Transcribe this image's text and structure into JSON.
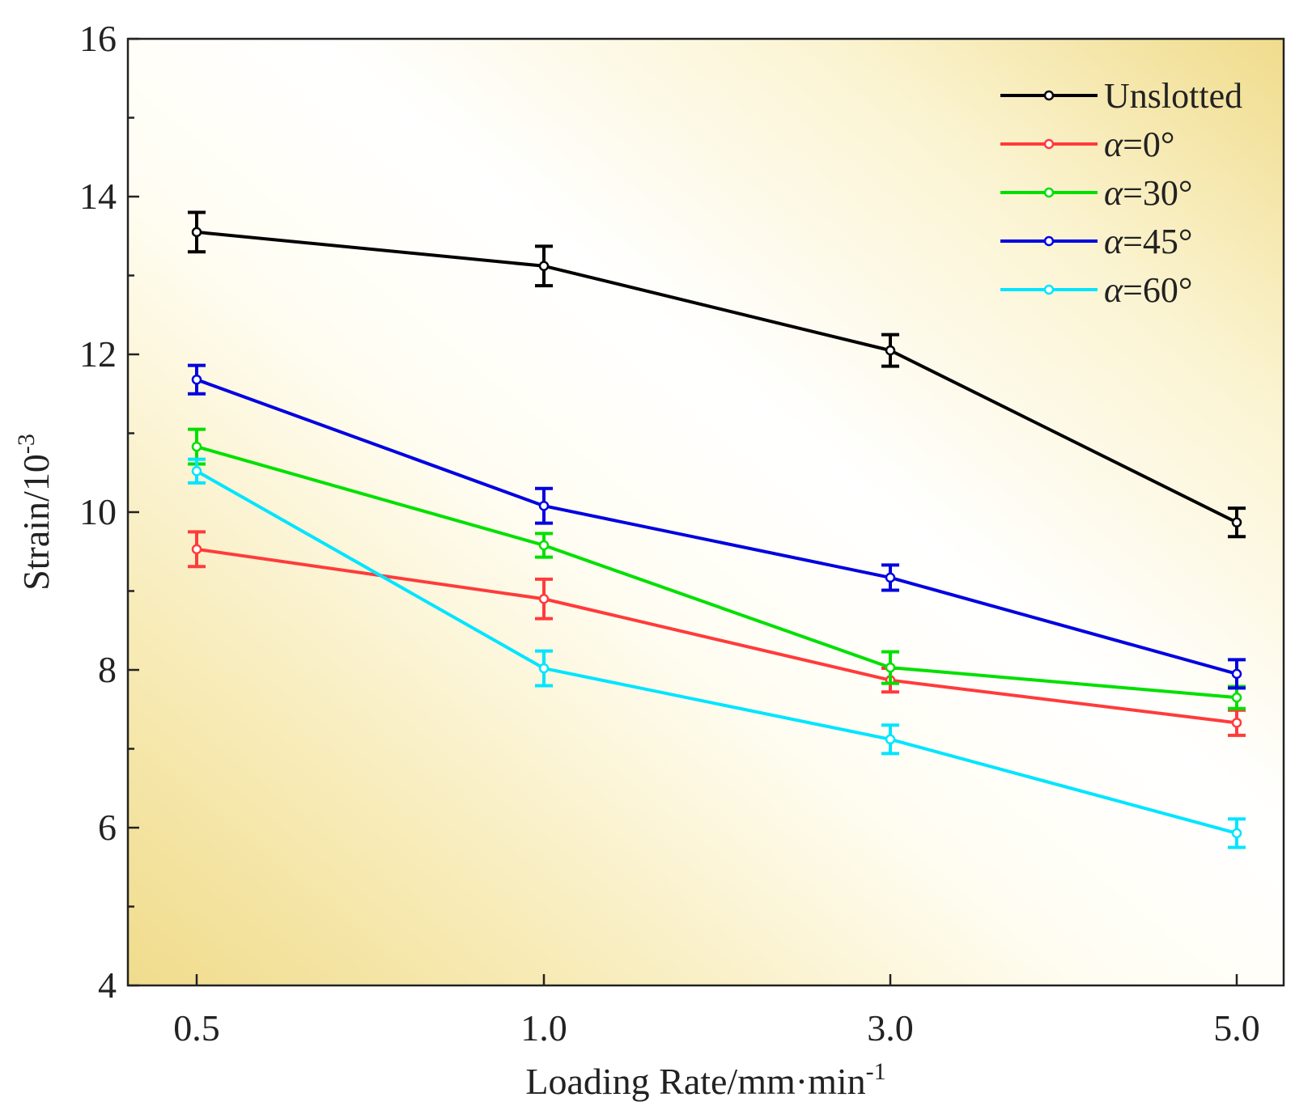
{
  "chart_data": {
    "type": "line",
    "categories": [
      "0.5",
      "1.0",
      "3.0",
      "5.0"
    ],
    "xlabel": "Loading Rate/mm·min",
    "xlabel_sup": "-1",
    "ylabel": "Strain/10",
    "ylabel_sup": "-3",
    "ylim": [
      4,
      16
    ],
    "yticks": [
      4,
      6,
      8,
      10,
      12,
      14,
      16
    ],
    "ytick_labels": [
      "4",
      "6",
      "8",
      "10",
      "12",
      "14",
      "16"
    ],
    "legend_position": "top-right",
    "series": [
      {
        "name": "Unslotted",
        "prefix": "",
        "label": "Unslotted",
        "color": "#000000",
        "values": [
          13.55,
          13.12,
          12.05,
          9.87
        ],
        "errors": [
          0.25,
          0.25,
          0.2,
          0.18
        ]
      },
      {
        "name": "α=0°",
        "prefix": "α",
        "label": "=0°",
        "color": "#ff3b3b",
        "values": [
          9.53,
          8.9,
          7.87,
          7.33
        ],
        "errors": [
          0.22,
          0.25,
          0.15,
          0.16
        ]
      },
      {
        "name": "α=30°",
        "prefix": "α",
        "label": "=30°",
        "color": "#00e000",
        "values": [
          10.83,
          9.58,
          8.03,
          7.65
        ],
        "errors": [
          0.22,
          0.15,
          0.2,
          0.14
        ]
      },
      {
        "name": "α=45°",
        "prefix": "α",
        "label": "=45°",
        "color": "#0000e0",
        "values": [
          11.68,
          10.08,
          9.17,
          7.95
        ],
        "errors": [
          0.18,
          0.22,
          0.16,
          0.18
        ]
      },
      {
        "name": "α=60°",
        "prefix": "α",
        "label": "=60°",
        "color": "#00e5ff",
        "values": [
          10.52,
          8.02,
          7.12,
          5.93
        ],
        "errors": [
          0.15,
          0.22,
          0.18,
          0.18
        ]
      }
    ]
  }
}
